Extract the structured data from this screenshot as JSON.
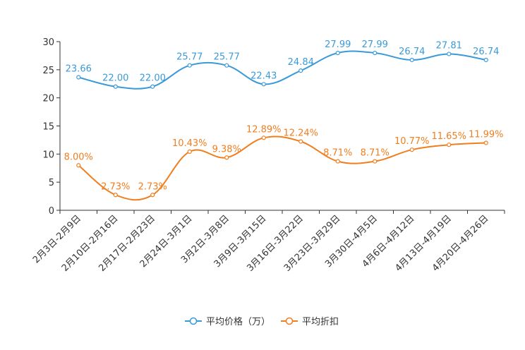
{
  "chart_data": {
    "type": "line",
    "categories": [
      "2月3日-2月9日",
      "2月10日-2月16日",
      "2月17日-2月23日",
      "2月24日-3月1日",
      "3月2日-3月8日",
      "3月9日-3月15日",
      "3月16日-3月22日",
      "3月23日-3月29日",
      "3月30日-4月5日",
      "4月6日-4月12日",
      "4月13日-4月19日",
      "4月20日-4月26日"
    ],
    "ylim": [
      0,
      30
    ],
    "yticks": [
      0,
      5,
      10,
      15,
      20,
      25,
      30
    ],
    "series": [
      {
        "name": "平均价格（万）",
        "color": "#3a9ad9",
        "values": [
          23.66,
          22.0,
          22.0,
          25.77,
          25.77,
          22.43,
          24.84,
          27.99,
          27.99,
          26.74,
          27.81,
          26.74
        ],
        "labels": [
          "23.66",
          "22.00",
          "22.00",
          "25.77",
          "25.77",
          "22.43",
          "24.84",
          "27.99",
          "27.99",
          "26.74",
          "27.81",
          "26.74"
        ]
      },
      {
        "name": "平均折扣",
        "color": "#f07e1e",
        "values": [
          8.0,
          2.73,
          2.73,
          10.43,
          9.38,
          12.89,
          12.24,
          8.71,
          8.71,
          10.77,
          11.65,
          11.99
        ],
        "labels": [
          "8.00%",
          "2.73%",
          "2.73%",
          "10.43%",
          "9.38%",
          "12.89%",
          "12.24%",
          "8.71%",
          "8.71%",
          "10.77%",
          "11.65%",
          "11.99%"
        ]
      }
    ],
    "legend_position": "bottom-center",
    "grid": false
  }
}
